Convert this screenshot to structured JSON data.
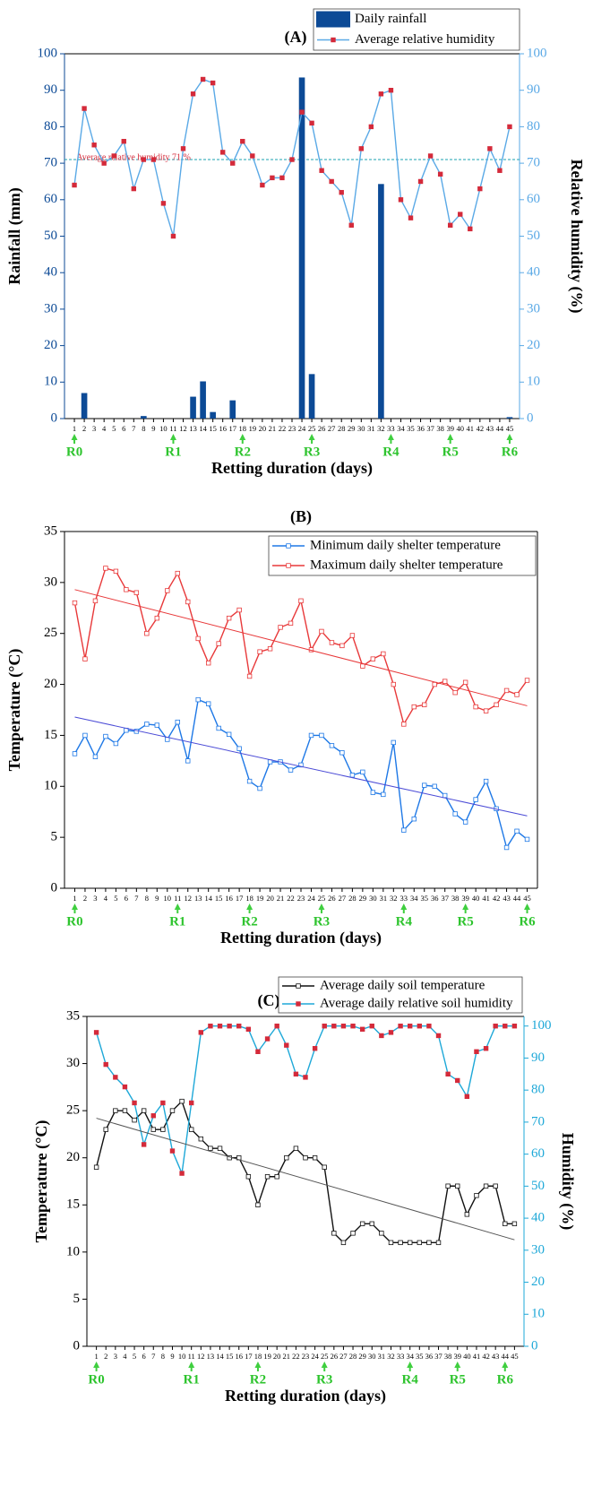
{
  "chart_data": [
    {
      "type": "combo",
      "title": "(A)",
      "xlabel": "Retting duration (days)",
      "ylabel": "Rainfall (mm)",
      "y2label": "Relative humidity (%)",
      "y_axis_color": "#0c4a96",
      "y2_axis_color": "#5aa9e6",
      "legend": "upper right",
      "x": [
        1,
        2,
        3,
        4,
        5,
        6,
        7,
        8,
        9,
        10,
        11,
        12,
        13,
        14,
        15,
        16,
        17,
        18,
        19,
        20,
        21,
        22,
        23,
        24,
        25,
        26,
        27,
        28,
        29,
        30,
        31,
        32,
        33,
        34,
        35,
        36,
        37,
        38,
        39,
        40,
        41,
        42,
        43,
        44,
        45
      ],
      "xticks": [
        1,
        2,
        3,
        4,
        5,
        6,
        7,
        8,
        9,
        10,
        11,
        12,
        13,
        14,
        15,
        16,
        17,
        18,
        19,
        20,
        21,
        22,
        23,
        24,
        25,
        26,
        27,
        28,
        29,
        30,
        31,
        32,
        33,
        34,
        35,
        36,
        37,
        38,
        39,
        40,
        41,
        42,
        43,
        44,
        45
      ],
      "xlim": [
        0,
        46
      ],
      "ylim": [
        0,
        100
      ],
      "yticks": [
        0,
        10,
        20,
        30,
        40,
        50,
        60,
        70,
        80,
        90,
        100
      ],
      "y2lim": [
        0,
        100
      ],
      "y2ticks": [
        0,
        10,
        20,
        30,
        40,
        50,
        60,
        70,
        80,
        90,
        100
      ],
      "series": [
        {
          "type": "bar",
          "name": "Daily rainfall",
          "color": "#0c4a96",
          "values": [
            0,
            7,
            0,
            0,
            0,
            0,
            0,
            0.7,
            0,
            0,
            0,
            0,
            6,
            10.2,
            1.8,
            0,
            5,
            0,
            0,
            0,
            0,
            0,
            0,
            93.5,
            12.2,
            0,
            0,
            0,
            0,
            0,
            0,
            64.3,
            0,
            0,
            0,
            0,
            0,
            0,
            0,
            0,
            0,
            0,
            0,
            0,
            0.4
          ]
        },
        {
          "type": "line",
          "name": "Average relative humidity",
          "axis": "y2",
          "color": "#5aa9e6",
          "marker_color": "#d42a3a",
          "marker_fill": "#d42a3a",
          "values": [
            64,
            85,
            75,
            70,
            72,
            76,
            63,
            71,
            71,
            59,
            50,
            74,
            89,
            93,
            92,
            73,
            70,
            76,
            72,
            64,
            66,
            66,
            71,
            84,
            81,
            68,
            65,
            62,
            53,
            74,
            80,
            89,
            90,
            60,
            55,
            65,
            72,
            67,
            53,
            56,
            52,
            63,
            74,
            68,
            80
          ]
        }
      ],
      "annotation": {
        "text": "Average relative humidity 71 %",
        "value": 71,
        "axis": "y2",
        "color": "#d42a3a",
        "line_color": "#1aa0b0"
      },
      "stages": [
        {
          "label": "R0",
          "x": 1
        },
        {
          "label": "R1",
          "x": 11
        },
        {
          "label": "R2",
          "x": 18
        },
        {
          "label": "R3",
          "x": 25
        },
        {
          "label": "R4",
          "x": 33
        },
        {
          "label": "R5",
          "x": 39
        },
        {
          "label": "R6",
          "x": 45
        }
      ]
    },
    {
      "type": "combo",
      "title": "(B)",
      "xlabel": "Retting duration (days)",
      "ylabel": "Temperature (°C)",
      "legend": "upper right",
      "x": [
        1,
        2,
        3,
        4,
        5,
        6,
        7,
        8,
        9,
        10,
        11,
        12,
        13,
        14,
        15,
        16,
        17,
        18,
        19,
        20,
        21,
        22,
        23,
        24,
        25,
        26,
        27,
        28,
        29,
        30,
        31,
        32,
        33,
        34,
        35,
        36,
        37,
        38,
        39,
        40,
        41,
        42,
        43,
        44,
        45
      ],
      "xticks": [
        1,
        2,
        3,
        4,
        5,
        6,
        7,
        8,
        9,
        10,
        11,
        12,
        13,
        14,
        15,
        16,
        17,
        18,
        19,
        20,
        21,
        22,
        23,
        24,
        25,
        26,
        27,
        28,
        29,
        30,
        31,
        32,
        33,
        34,
        35,
        36,
        37,
        38,
        39,
        40,
        41,
        42,
        43,
        44,
        45
      ],
      "xlim": [
        0,
        46
      ],
      "ylim": [
        0,
        35
      ],
      "yticks": [
        0,
        5,
        10,
        15,
        20,
        25,
        30,
        35
      ],
      "series": [
        {
          "type": "line",
          "name": "Minimum daily shelter temperature",
          "color": "#1e78e6",
          "marker_color": "#1e78e6",
          "marker_fill": "#ffffff",
          "values": [
            13.2,
            15,
            12.9,
            14.9,
            14.2,
            15.5,
            15.4,
            16.1,
            16,
            14.6,
            16.3,
            12.5,
            18.5,
            18.1,
            15.7,
            15.1,
            13.7,
            10.5,
            9.8,
            12.4,
            12.4,
            11.6,
            12.1,
            15,
            15,
            14,
            13.3,
            11.1,
            11.4,
            9.4,
            9.2,
            14.3,
            5.7,
            6.8,
            10.1,
            10,
            9.1,
            7.3,
            6.5,
            8.7,
            10.5,
            7.8,
            4,
            5.6,
            4.8
          ]
        },
        {
          "type": "line",
          "name": "Maximum daily shelter temperature",
          "color": "#e8393a",
          "marker_color": "#e8393a",
          "marker_fill": "#ffffff",
          "values": [
            28,
            22.5,
            28.2,
            31.4,
            31.1,
            29.3,
            29,
            25,
            26.5,
            29.2,
            30.9,
            28.1,
            24.5,
            22.1,
            24,
            26.5,
            27.3,
            20.8,
            23.2,
            23.5,
            25.6,
            26,
            28.2,
            23.4,
            25.2,
            24.1,
            23.8,
            24.8,
            21.8,
            22.5,
            23,
            20,
            16.1,
            17.8,
            18,
            20,
            20.3,
            19.2,
            20.2,
            17.8,
            17.4,
            18,
            19.4,
            19,
            20.4
          ]
        },
        {
          "type": "trend",
          "color": "#4b4bd6",
          "x": [
            1,
            45
          ],
          "values": [
            16.8,
            7.1
          ]
        },
        {
          "type": "trend",
          "color": "#e8393a",
          "x": [
            1,
            45
          ],
          "values": [
            29.3,
            17.9
          ]
        }
      ],
      "stages": [
        {
          "label": "R0",
          "x": 1
        },
        {
          "label": "R1",
          "x": 11
        },
        {
          "label": "R2",
          "x": 18
        },
        {
          "label": "R3",
          "x": 25
        },
        {
          "label": "R4",
          "x": 33
        },
        {
          "label": "R5",
          "x": 39
        },
        {
          "label": "R6",
          "x": 45
        }
      ]
    },
    {
      "type": "combo",
      "title": "(C)",
      "xlabel": "Retting duration (days)",
      "ylabel": "Temperature (°C)",
      "y2label": "Humidity (%)",
      "y2_axis_color": "#1ea8d8",
      "legend": "upper right",
      "x": [
        1,
        2,
        3,
        4,
        5,
        6,
        7,
        8,
        9,
        10,
        11,
        12,
        13,
        14,
        15,
        16,
        17,
        18,
        19,
        20,
        21,
        22,
        23,
        24,
        25,
        26,
        27,
        28,
        29,
        30,
        31,
        32,
        33,
        34,
        35,
        36,
        37,
        38,
        39,
        40,
        41,
        42,
        43,
        44,
        45
      ],
      "xticks": [
        1,
        2,
        3,
        4,
        5,
        6,
        7,
        8,
        9,
        10,
        11,
        12,
        13,
        14,
        15,
        16,
        17,
        18,
        19,
        20,
        21,
        22,
        23,
        24,
        25,
        26,
        27,
        28,
        29,
        30,
        31,
        32,
        33,
        34,
        35,
        36,
        37,
        38,
        39,
        40,
        41,
        42,
        43,
        44,
        45
      ],
      "xlim": [
        0,
        46
      ],
      "ylim": [
        0,
        35
      ],
      "yticks": [
        0,
        5,
        10,
        15,
        20,
        25,
        30,
        35
      ],
      "y2lim": [
        0,
        103
      ],
      "y2ticks": [
        0,
        10,
        20,
        30,
        40,
        50,
        60,
        70,
        80,
        90,
        100
      ],
      "series": [
        {
          "type": "line",
          "name": "Average daily soil temperature",
          "color": "#111111",
          "marker_color": "#111111",
          "marker_fill": "#ffffff",
          "values": [
            19,
            23,
            25,
            25,
            24,
            25,
            23,
            23,
            25,
            26,
            23,
            22,
            21,
            21,
            20,
            20,
            18,
            15,
            18,
            18,
            20,
            21,
            20,
            20,
            19,
            12,
            11,
            12,
            13,
            13,
            12,
            11,
            11,
            11,
            11,
            11,
            11,
            17,
            17,
            14,
            16,
            17,
            17,
            13,
            13
          ]
        },
        {
          "type": "line",
          "name": "Average daily relative soil humidity",
          "axis": "y2",
          "color": "#1ea8d8",
          "marker_color": "#d42a3a",
          "marker_fill": "#d42a3a",
          "values": [
            98,
            88,
            84,
            81,
            76,
            63,
            72,
            76,
            61,
            54,
            76,
            98,
            100,
            100,
            100,
            100,
            99,
            92,
            96,
            100,
            94,
            85,
            84,
            93,
            100,
            100,
            100,
            100,
            99,
            100,
            97,
            98,
            100,
            100,
            100,
            100,
            97,
            85,
            83,
            78,
            92,
            93,
            100,
            100,
            100
          ]
        },
        {
          "type": "trend",
          "color": "#555555",
          "x": [
            1,
            45
          ],
          "values": [
            24.2,
            11.3
          ]
        }
      ],
      "stages": [
        {
          "label": "R0",
          "x": 1
        },
        {
          "label": "R1",
          "x": 11
        },
        {
          "label": "R2",
          "x": 18
        },
        {
          "label": "R3",
          "x": 25
        },
        {
          "label": "R4",
          "x": 34
        },
        {
          "label": "R5",
          "x": 39
        },
        {
          "label": "R6",
          "x": 44
        }
      ]
    }
  ]
}
